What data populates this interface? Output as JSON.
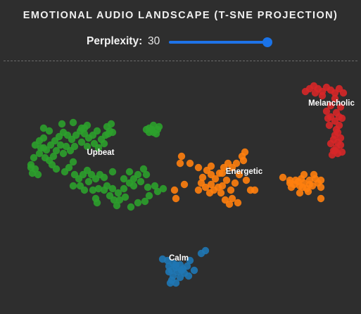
{
  "title": "EMOTIONAL AUDIO LANDSCAPE (T-SNE PROJECTION)",
  "controls": {
    "perplexity_label": "Perplexity:",
    "perplexity_value": "30",
    "perplexity_fraction": 0.96
  },
  "colors": {
    "background": "#2e2e2e",
    "accent": "#1a73e8",
    "Upbeat": "#2ca02c",
    "Energetic": "#ff7f0e",
    "Melancholic": "#d62728",
    "Calm": "#1f77b4"
  },
  "chart_data": {
    "type": "scatter",
    "title": "EMOTIONAL AUDIO LANDSCAPE (T-SNE PROJECTION)",
    "xlabel": "",
    "ylabel": "",
    "xlim": [
      0,
      513
    ],
    "ylim": [
      0,
      358
    ],
    "grid": false,
    "legend": "none",
    "series": [
      {
        "name": "Upbeat",
        "color": "#2ca02c",
        "label_at": [
          143,
          132
        ],
        "points": [
          [
            50,
            118
          ],
          [
            56,
            112
          ],
          [
            62,
            108
          ],
          [
            58,
            122
          ],
          [
            66,
            125
          ],
          [
            72,
            118
          ],
          [
            78,
            112
          ],
          [
            84,
            106
          ],
          [
            90,
            100
          ],
          [
            96,
            104
          ],
          [
            102,
            110
          ],
          [
            108,
            104
          ],
          [
            114,
            98
          ],
          [
            120,
            102
          ],
          [
            126,
            108
          ],
          [
            132,
            104
          ],
          [
            138,
            98
          ],
          [
            144,
            110
          ],
          [
            150,
            104
          ],
          [
            156,
            98
          ],
          [
            152,
            92
          ],
          [
            158,
            88
          ],
          [
            160,
            100
          ],
          [
            148,
            116
          ],
          [
            140,
            122
          ],
          [
            134,
            116
          ],
          [
            124,
            120
          ],
          [
            116,
            114
          ],
          [
            106,
            120
          ],
          [
            100,
            126
          ],
          [
            94,
            120
          ],
          [
            86,
            118
          ],
          [
            80,
            126
          ],
          [
            76,
            134
          ],
          [
            70,
            140
          ],
          [
            64,
            136
          ],
          [
            56,
            130
          ],
          [
            48,
            136
          ],
          [
            44,
            146
          ],
          [
            50,
            152
          ],
          [
            46,
            158
          ],
          [
            54,
            160
          ],
          [
            74,
            146
          ],
          [
            80,
            152
          ],
          [
            92,
            156
          ],
          [
            98,
            150
          ],
          [
            104,
            142
          ],
          [
            106,
            160
          ],
          [
            112,
            166
          ],
          [
            118,
            160
          ],
          [
            124,
            154
          ],
          [
            130,
            160
          ],
          [
            136,
            166
          ],
          [
            142,
            160
          ],
          [
            126,
            170
          ],
          [
            114,
            176
          ],
          [
            104,
            176
          ],
          [
            120,
            182
          ],
          [
            132,
            182
          ],
          [
            136,
            194
          ],
          [
            138,
            200
          ],
          [
            148,
            182
          ],
          [
            152,
            176
          ],
          [
            160,
            180
          ],
          [
            168,
            186
          ],
          [
            176,
            180
          ],
          [
            184,
            172
          ],
          [
            190,
            166
          ],
          [
            196,
            160
          ],
          [
            204,
            152
          ],
          [
            208,
            160
          ],
          [
            200,
            170
          ],
          [
            190,
            176
          ],
          [
            178,
            192
          ],
          [
            170,
            196
          ],
          [
            162,
            196
          ],
          [
            156,
            190
          ],
          [
            166,
            204
          ],
          [
            186,
            206
          ],
          [
            196,
            200
          ],
          [
            206,
            198
          ],
          [
            212,
            190
          ],
          [
            224,
            184
          ],
          [
            232,
            180
          ],
          [
            220,
            176
          ],
          [
            210,
            178
          ],
          [
            176,
            166
          ],
          [
            184,
            156
          ],
          [
            160,
            156
          ],
          [
            148,
            164
          ],
          [
            90,
            130
          ],
          [
            62,
            94
          ],
          [
            70,
            98
          ],
          [
            88,
            88
          ],
          [
            104,
            86
          ],
          [
            124,
            90
          ],
          [
            154,
            102
          ],
          [
            116,
            94
          ],
          [
            62,
            122
          ],
          [
            44,
            150
          ],
          [
            120,
            94
          ],
          [
            140,
            180
          ],
          [
            212,
            94
          ],
          [
            218,
            90
          ],
          [
            224,
            96
          ],
          [
            218,
            100
          ],
          [
            212,
            100
          ],
          [
            226,
            92
          ],
          [
            208,
            96
          ],
          [
            222,
            102
          ],
          [
            216,
            96
          ]
        ]
      },
      {
        "name": "Energetic",
        "color": "#ff7f0e",
        "label_at": [
          347,
          159
        ],
        "points": [
          [
            258,
            134
          ],
          [
            270,
            144
          ],
          [
            256,
            144
          ],
          [
            248,
            182
          ],
          [
            262,
            174
          ],
          [
            250,
            194
          ],
          [
            282,
            150
          ],
          [
            288,
            164
          ],
          [
            294,
            154
          ],
          [
            300,
            160
          ],
          [
            306,
            166
          ],
          [
            312,
            158
          ],
          [
            318,
            150
          ],
          [
            324,
            144
          ],
          [
            330,
            150
          ],
          [
            336,
            144
          ],
          [
            344,
            134
          ],
          [
            348,
            128
          ],
          [
            340,
            160
          ],
          [
            350,
            168
          ],
          [
            356,
            182
          ],
          [
            362,
            182
          ],
          [
            338,
            200
          ],
          [
            326,
            202
          ],
          [
            320,
            196
          ],
          [
            314,
            186
          ],
          [
            310,
            178
          ],
          [
            304,
            182
          ],
          [
            298,
            186
          ],
          [
            292,
            178
          ],
          [
            286,
            172
          ],
          [
            282,
            182
          ],
          [
            328,
            182
          ],
          [
            334,
            172
          ],
          [
            346,
            140
          ],
          [
            300,
            148
          ],
          [
            316,
            176
          ],
          [
            322,
            168
          ],
          [
            330,
            194
          ],
          [
            402,
            164
          ],
          [
            412,
            172
          ],
          [
            414,
            178
          ],
          [
            420,
            168
          ],
          [
            426,
            176
          ],
          [
            428,
            166
          ],
          [
            432,
            172
          ],
          [
            436,
            180
          ],
          [
            440,
            168
          ],
          [
            444,
            176
          ],
          [
            448,
            166
          ],
          [
            452,
            172
          ],
          [
            456,
            178
          ],
          [
            438,
            184
          ],
          [
            426,
            186
          ],
          [
            418,
            174
          ],
          [
            446,
            160
          ],
          [
            432,
            160
          ],
          [
            424,
            170
          ],
          [
            440,
            174
          ],
          [
            430,
            178
          ],
          [
            456,
            194
          ],
          [
            456,
            168
          ],
          [
            412,
            168
          ],
          [
            316,
            158
          ],
          [
            300,
            174
          ]
        ]
      },
      {
        "name": "Melancholic",
        "color": "#d62728",
        "label_at": [
          471,
          62
        ],
        "points": [
          [
            434,
            42
          ],
          [
            440,
            38
          ],
          [
            446,
            34
          ],
          [
            452,
            38
          ],
          [
            458,
            42
          ],
          [
            464,
            36
          ],
          [
            470,
            40
          ],
          [
            476,
            44
          ],
          [
            482,
            38
          ],
          [
            488,
            44
          ],
          [
            476,
            52
          ],
          [
            470,
            62
          ],
          [
            464,
            70
          ],
          [
            470,
            78
          ],
          [
            476,
            84
          ],
          [
            482,
            90
          ],
          [
            486,
            80
          ],
          [
            478,
            72
          ],
          [
            484,
            64
          ],
          [
            468,
            90
          ],
          [
            478,
            96
          ],
          [
            480,
            100
          ],
          [
            476,
            104
          ],
          [
            484,
            108
          ],
          [
            474,
            110
          ],
          [
            480,
            114
          ],
          [
            470,
            116
          ],
          [
            478,
            122
          ],
          [
            486,
            128
          ],
          [
            474,
            126
          ],
          [
            480,
            130
          ],
          [
            472,
            132
          ],
          [
            466,
            80
          ],
          [
            482,
            78
          ],
          [
            476,
            126
          ],
          [
            484,
            118
          ],
          [
            448,
            44
          ],
          [
            458,
            48
          ]
        ]
      },
      {
        "name": "Calm",
        "color": "#1f77b4",
        "label_at": [
          254,
          282
        ],
        "points": [
          [
            231,
            280
          ],
          [
            238,
            282
          ],
          [
            240,
            290
          ],
          [
            246,
            286
          ],
          [
            250,
            292
          ],
          [
            256,
            288
          ],
          [
            260,
            294
          ],
          [
            266,
            290
          ],
          [
            244,
            296
          ],
          [
            252,
            298
          ],
          [
            262,
            300
          ],
          [
            268,
            304
          ],
          [
            246,
            304
          ],
          [
            240,
            298
          ],
          [
            256,
            306
          ],
          [
            244,
            310
          ],
          [
            250,
            314
          ],
          [
            242,
            314
          ],
          [
            276,
            296
          ],
          [
            286,
            272
          ],
          [
            292,
            268
          ],
          [
            270,
            282
          ],
          [
            250,
            288
          ],
          [
            258,
            296
          ]
        ]
      }
    ]
  }
}
